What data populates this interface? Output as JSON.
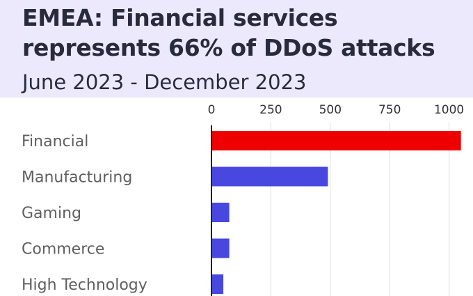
{
  "header": {
    "title": "EMEA: Financial services represents 66% of DDoS attacks",
    "subtitle": "June 2023 - December 2023"
  },
  "chart_data": {
    "type": "bar",
    "orientation": "horizontal",
    "title": "EMEA: Financial services represents 66% of DDoS attacks",
    "subtitle": "June 2023 - December 2023",
    "categories": [
      "Financial",
      "Manufacturing",
      "Gaming",
      "Commerce",
      "High Technology"
    ],
    "values": [
      1050,
      490,
      75,
      75,
      50
    ],
    "bar_colors": [
      "#ee0000",
      "#4848e0",
      "#4848e0",
      "#4848e0",
      "#4848e0"
    ],
    "x_ticks": [
      0,
      250,
      500,
      750,
      1000
    ],
    "xlim": [
      0,
      1050
    ],
    "xlabel": "",
    "ylabel": "",
    "grid": true,
    "legend": "none"
  }
}
